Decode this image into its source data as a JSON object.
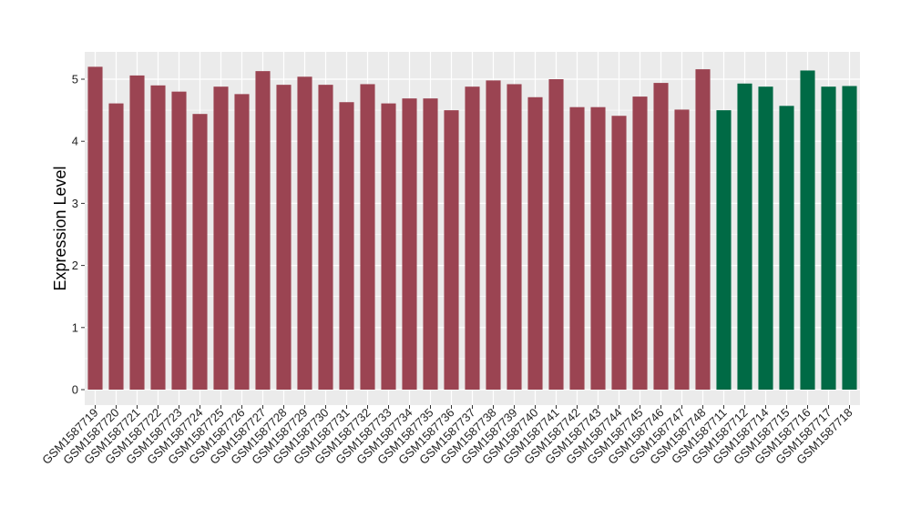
{
  "chart_data": {
    "type": "bar",
    "title": "",
    "xlabel": "",
    "ylabel": "Expression Level",
    "ylim": [
      0,
      5.4
    ],
    "yticks": [
      0,
      1,
      2,
      3,
      4,
      5
    ],
    "grid": true,
    "legend": "none",
    "colors": {
      "group_a": "#9b4452",
      "group_b": "#006a45",
      "panel_bg": "#ebebeb",
      "grid": "#ffffff"
    },
    "categories": [
      "GSM1587719",
      "GSM1587720",
      "GSM1587721",
      "GSM1587722",
      "GSM1587723",
      "GSM1587724",
      "GSM1587725",
      "GSM1587726",
      "GSM1587727",
      "GSM1587728",
      "GSM1587729",
      "GSM1587730",
      "GSM1587731",
      "GSM1587732",
      "GSM1587733",
      "GSM1587734",
      "GSM1587735",
      "GSM1587736",
      "GSM1587737",
      "GSM1587738",
      "GSM1587739",
      "GSM1587740",
      "GSM1587741",
      "GSM1587742",
      "GSM1587743",
      "GSM1587744",
      "GSM1587745",
      "GSM1587746",
      "GSM1587747",
      "GSM1587748",
      "GSM1587711",
      "GSM1587712",
      "GSM1587714",
      "GSM1587715",
      "GSM1587716",
      "GSM1587717",
      "GSM1587718"
    ],
    "values": [
      5.2,
      4.61,
      5.06,
      4.9,
      4.8,
      4.44,
      4.88,
      4.76,
      5.13,
      4.91,
      5.04,
      4.91,
      4.63,
      4.92,
      4.61,
      4.69,
      4.69,
      4.5,
      4.88,
      4.98,
      4.92,
      4.71,
      5.0,
      4.55,
      4.55,
      4.41,
      4.72,
      4.94,
      4.51,
      5.16,
      4.5,
      4.93,
      4.88,
      4.57,
      5.14,
      4.88,
      4.89
    ],
    "groups": [
      "group_a",
      "group_a",
      "group_a",
      "group_a",
      "group_a",
      "group_a",
      "group_a",
      "group_a",
      "group_a",
      "group_a",
      "group_a",
      "group_a",
      "group_a",
      "group_a",
      "group_a",
      "group_a",
      "group_a",
      "group_a",
      "group_a",
      "group_a",
      "group_a",
      "group_a",
      "group_a",
      "group_a",
      "group_a",
      "group_a",
      "group_a",
      "group_a",
      "group_a",
      "group_a",
      "group_b",
      "group_b",
      "group_b",
      "group_b",
      "group_b",
      "group_b",
      "group_b"
    ]
  }
}
